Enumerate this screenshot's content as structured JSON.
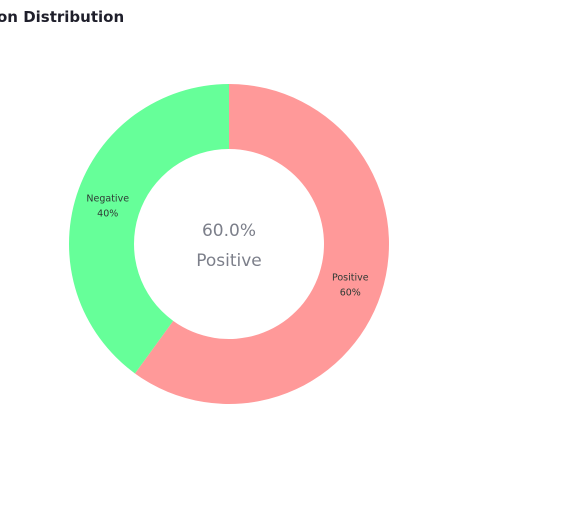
{
  "chart_data": {
    "type": "pie",
    "title": "on Distribution",
    "hole": true,
    "slices": [
      {
        "label": "Positive",
        "value": 60,
        "pct_label": "60%",
        "color": "#ff9999"
      },
      {
        "label": "Negative",
        "value": 40,
        "pct_label": "40%",
        "color": "#66ff99"
      }
    ],
    "center_value": "60.0%",
    "center_label": "Positive",
    "legend": "none"
  }
}
